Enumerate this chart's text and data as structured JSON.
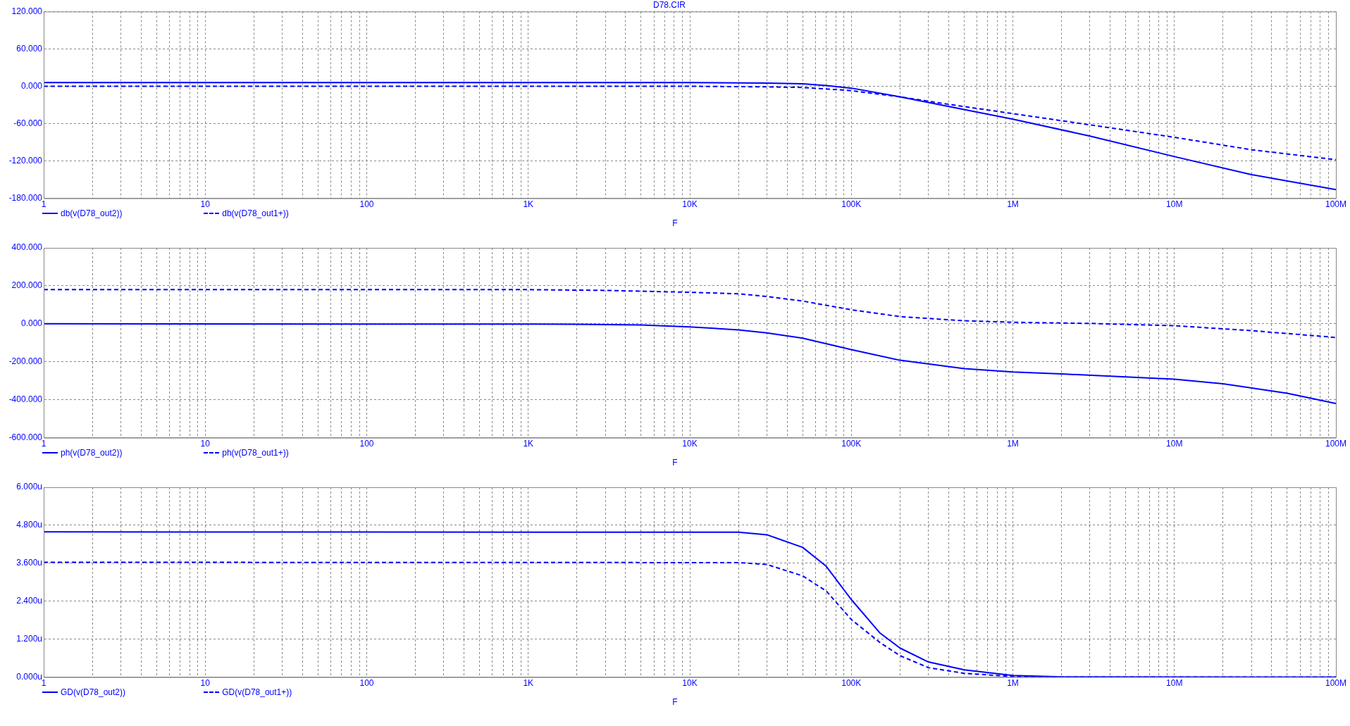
{
  "chart_data": [
    {
      "type": "line",
      "title": "D78.CIR",
      "xlabel": "F",
      "log": "x",
      "grid": true,
      "legend": "bottom left",
      "marker": "none",
      "xlim": [
        1,
        100000000
      ],
      "xticks": [
        {
          "value": 1,
          "label": "1"
        },
        {
          "value": 2,
          "label": null
        },
        {
          "value": 3,
          "label": null
        },
        {
          "value": 4,
          "label": null
        },
        {
          "value": 5,
          "label": null
        },
        {
          "value": 6,
          "label": null
        },
        {
          "value": 7,
          "label": null
        },
        {
          "value": 8,
          "label": null
        },
        {
          "value": 9,
          "label": null
        },
        {
          "value": 10,
          "label": "10"
        },
        {
          "value": 20,
          "label": null
        },
        {
          "value": 30,
          "label": null
        },
        {
          "value": 40,
          "label": null
        },
        {
          "value": 50,
          "label": null
        },
        {
          "value": 60,
          "label": null
        },
        {
          "value": 70,
          "label": null
        },
        {
          "value": 80,
          "label": null
        },
        {
          "value": 90,
          "label": null
        },
        {
          "value": 100,
          "label": "100"
        },
        {
          "value": 200,
          "label": null
        },
        {
          "value": 300,
          "label": null
        },
        {
          "value": 400,
          "label": null
        },
        {
          "value": 500,
          "label": null
        },
        {
          "value": 600,
          "label": null
        },
        {
          "value": 700,
          "label": null
        },
        {
          "value": 800,
          "label": null
        },
        {
          "value": 900,
          "label": null
        },
        {
          "value": 1000,
          "label": "1K"
        },
        {
          "value": 2000,
          "label": null
        },
        {
          "value": 3000,
          "label": null
        },
        {
          "value": 4000,
          "label": null
        },
        {
          "value": 5000,
          "label": null
        },
        {
          "value": 6000,
          "label": null
        },
        {
          "value": 7000,
          "label": null
        },
        {
          "value": 8000,
          "label": null
        },
        {
          "value": 9000,
          "label": null
        },
        {
          "value": 10000,
          "label": "10K"
        },
        {
          "value": 20000,
          "label": null
        },
        {
          "value": 30000,
          "label": null
        },
        {
          "value": 40000,
          "label": null
        },
        {
          "value": 50000,
          "label": null
        },
        {
          "value": 60000,
          "label": null
        },
        {
          "value": 70000,
          "label": null
        },
        {
          "value": 80000,
          "label": null
        },
        {
          "value": 90000,
          "label": null
        },
        {
          "value": 100000,
          "label": "100K"
        },
        {
          "value": 200000,
          "label": null
        },
        {
          "value": 300000,
          "label": null
        },
        {
          "value": 400000,
          "label": null
        },
        {
          "value": 500000,
          "label": null
        },
        {
          "value": 600000,
          "label": null
        },
        {
          "value": 700000,
          "label": null
        },
        {
          "value": 800000,
          "label": null
        },
        {
          "value": 900000,
          "label": null
        },
        {
          "value": 1000000,
          "label": "1M"
        },
        {
          "value": 2000000,
          "label": null
        },
        {
          "value": 3000000,
          "label": null
        },
        {
          "value": 4000000,
          "label": null
        },
        {
          "value": 5000000,
          "label": null
        },
        {
          "value": 6000000,
          "label": null
        },
        {
          "value": 7000000,
          "label": null
        },
        {
          "value": 8000000,
          "label": null
        },
        {
          "value": 9000000,
          "label": null
        },
        {
          "value": 10000000,
          "label": "10M"
        },
        {
          "value": 20000000,
          "label": null
        },
        {
          "value": 30000000,
          "label": null
        },
        {
          "value": 40000000,
          "label": null
        },
        {
          "value": 50000000,
          "label": null
        },
        {
          "value": 60000000,
          "label": null
        },
        {
          "value": 70000000,
          "label": null
        },
        {
          "value": 80000000,
          "label": null
        },
        {
          "value": 90000000,
          "label": null
        },
        {
          "value": 100000000,
          "label": "100M"
        }
      ],
      "ylim": [
        -180,
        120
      ],
      "yticks": [
        {
          "value": -180,
          "label": "-180.000"
        },
        {
          "value": -120,
          "label": "-120.000"
        },
        {
          "value": -60,
          "label": "-60.000"
        },
        {
          "value": 0,
          "label": "0.000"
        },
        {
          "value": 60,
          "label": "60.000"
        },
        {
          "value": 120,
          "label": "120.000"
        }
      ],
      "series": [
        {
          "name": "db(v(D78_out2))",
          "color": "#0000ff",
          "line_style": "solid",
          "x": [
            1,
            10000,
            30000,
            50000,
            70000,
            100000,
            200000,
            300000,
            1000000,
            3000000,
            10000000,
            30000000,
            100000000
          ],
          "values": [
            6,
            6,
            5,
            4,
            1,
            -3,
            -17,
            -26,
            -53,
            -80,
            -113,
            -142,
            -166
          ]
        },
        {
          "name": "db(v(D78_out1+))",
          "color": "#0000ff",
          "line_style": "dashed",
          "x": [
            1,
            10000,
            30000,
            50000,
            100000,
            200000,
            400000,
            1000000,
            3000000,
            10000000,
            30000000,
            100000000
          ],
          "values": [
            0,
            0,
            -1,
            -2,
            -7,
            -17,
            -29,
            -44,
            -62,
            -82,
            -102,
            -118
          ]
        }
      ]
    },
    {
      "type": "line",
      "xlabel": "F",
      "log": "x",
      "grid": true,
      "legend": "bottom left",
      "marker": "none",
      "xlim": [
        1,
        100000000
      ],
      "xticks": [
        {
          "value": 1,
          "label": "1"
        },
        {
          "value": 2,
          "label": null
        },
        {
          "value": 3,
          "label": null
        },
        {
          "value": 4,
          "label": null
        },
        {
          "value": 5,
          "label": null
        },
        {
          "value": 6,
          "label": null
        },
        {
          "value": 7,
          "label": null
        },
        {
          "value": 8,
          "label": null
        },
        {
          "value": 9,
          "label": null
        },
        {
          "value": 10,
          "label": "10"
        },
        {
          "value": 20,
          "label": null
        },
        {
          "value": 30,
          "label": null
        },
        {
          "value": 40,
          "label": null
        },
        {
          "value": 50,
          "label": null
        },
        {
          "value": 60,
          "label": null
        },
        {
          "value": 70,
          "label": null
        },
        {
          "value": 80,
          "label": null
        },
        {
          "value": 90,
          "label": null
        },
        {
          "value": 100,
          "label": "100"
        },
        {
          "value": 200,
          "label": null
        },
        {
          "value": 300,
          "label": null
        },
        {
          "value": 400,
          "label": null
        },
        {
          "value": 500,
          "label": null
        },
        {
          "value": 600,
          "label": null
        },
        {
          "value": 700,
          "label": null
        },
        {
          "value": 800,
          "label": null
        },
        {
          "value": 900,
          "label": null
        },
        {
          "value": 1000,
          "label": "1K"
        },
        {
          "value": 2000,
          "label": null
        },
        {
          "value": 3000,
          "label": null
        },
        {
          "value": 4000,
          "label": null
        },
        {
          "value": 5000,
          "label": null
        },
        {
          "value": 6000,
          "label": null
        },
        {
          "value": 7000,
          "label": null
        },
        {
          "value": 8000,
          "label": null
        },
        {
          "value": 9000,
          "label": null
        },
        {
          "value": 10000,
          "label": "10K"
        },
        {
          "value": 20000,
          "label": null
        },
        {
          "value": 30000,
          "label": null
        },
        {
          "value": 40000,
          "label": null
        },
        {
          "value": 50000,
          "label": null
        },
        {
          "value": 60000,
          "label": null
        },
        {
          "value": 70000,
          "label": null
        },
        {
          "value": 80000,
          "label": null
        },
        {
          "value": 90000,
          "label": null
        },
        {
          "value": 100000,
          "label": "100K"
        },
        {
          "value": 200000,
          "label": null
        },
        {
          "value": 300000,
          "label": null
        },
        {
          "value": 400000,
          "label": null
        },
        {
          "value": 500000,
          "label": null
        },
        {
          "value": 600000,
          "label": null
        },
        {
          "value": 700000,
          "label": null
        },
        {
          "value": 800000,
          "label": null
        },
        {
          "value": 900000,
          "label": null
        },
        {
          "value": 1000000,
          "label": "1M"
        },
        {
          "value": 2000000,
          "label": null
        },
        {
          "value": 3000000,
          "label": null
        },
        {
          "value": 4000000,
          "label": null
        },
        {
          "value": 5000000,
          "label": null
        },
        {
          "value": 6000000,
          "label": null
        },
        {
          "value": 7000000,
          "label": null
        },
        {
          "value": 8000000,
          "label": null
        },
        {
          "value": 9000000,
          "label": null
        },
        {
          "value": 10000000,
          "label": "10M"
        },
        {
          "value": 20000000,
          "label": null
        },
        {
          "value": 30000000,
          "label": null
        },
        {
          "value": 40000000,
          "label": null
        },
        {
          "value": 50000000,
          "label": null
        },
        {
          "value": 60000000,
          "label": null
        },
        {
          "value": 70000000,
          "label": null
        },
        {
          "value": 80000000,
          "label": null
        },
        {
          "value": 90000000,
          "label": null
        },
        {
          "value": 100000000,
          "label": "100M"
        }
      ],
      "ylim": [
        -600,
        400
      ],
      "yticks": [
        {
          "value": -600,
          "label": "-600.000"
        },
        {
          "value": -400,
          "label": "-400.000"
        },
        {
          "value": -200,
          "label": "-200.000"
        },
        {
          "value": 0,
          "label": "0.000"
        },
        {
          "value": 200,
          "label": "200.000"
        },
        {
          "value": 400,
          "label": "400.000"
        }
      ],
      "series": [
        {
          "name": "ph(v(D78_out2))",
          "color": "#0000ff",
          "line_style": "solid",
          "x": [
            1,
            2000,
            5000,
            10000,
            20000,
            30000,
            50000,
            100000,
            200000,
            500000,
            1000000,
            2000000,
            5000000,
            10000000,
            20000000,
            50000000,
            100000000
          ],
          "values": [
            0,
            -2,
            -6,
            -16,
            -32,
            -48,
            -76,
            -136,
            -192,
            -236,
            -254,
            -264,
            -280,
            -292,
            -316,
            -366,
            -420
          ]
        },
        {
          "name": "ph(v(D78_out1+))",
          "color": "#0000ff",
          "line_style": "dashed",
          "x": [
            1,
            1000,
            3000,
            10000,
            20000,
            30000,
            50000,
            100000,
            200000,
            500000,
            1000000,
            3000000,
            10000000,
            30000000,
            100000000
          ],
          "values": [
            180,
            180,
            176,
            166,
            158,
            144,
            120,
            74,
            38,
            16,
            8,
            2,
            -10,
            -36,
            -72
          ]
        }
      ]
    },
    {
      "type": "line",
      "xlabel": "F",
      "log": "x",
      "grid": true,
      "legend": "bottom left",
      "marker": "none",
      "xlim": [
        1,
        100000000
      ],
      "xticks": [
        {
          "value": 1,
          "label": "1"
        },
        {
          "value": 2,
          "label": null
        },
        {
          "value": 3,
          "label": null
        },
        {
          "value": 4,
          "label": null
        },
        {
          "value": 5,
          "label": null
        },
        {
          "value": 6,
          "label": null
        },
        {
          "value": 7,
          "label": null
        },
        {
          "value": 8,
          "label": null
        },
        {
          "value": 9,
          "label": null
        },
        {
          "value": 10,
          "label": "10"
        },
        {
          "value": 20,
          "label": null
        },
        {
          "value": 30,
          "label": null
        },
        {
          "value": 40,
          "label": null
        },
        {
          "value": 50,
          "label": null
        },
        {
          "value": 60,
          "label": null
        },
        {
          "value": 70,
          "label": null
        },
        {
          "value": 80,
          "label": null
        },
        {
          "value": 90,
          "label": null
        },
        {
          "value": 100,
          "label": "100"
        },
        {
          "value": 200,
          "label": null
        },
        {
          "value": 300,
          "label": null
        },
        {
          "value": 400,
          "label": null
        },
        {
          "value": 500,
          "label": null
        },
        {
          "value": 600,
          "label": null
        },
        {
          "value": 700,
          "label": null
        },
        {
          "value": 800,
          "label": null
        },
        {
          "value": 900,
          "label": null
        },
        {
          "value": 1000,
          "label": "1K"
        },
        {
          "value": 2000,
          "label": null
        },
        {
          "value": 3000,
          "label": null
        },
        {
          "value": 4000,
          "label": null
        },
        {
          "value": 5000,
          "label": null
        },
        {
          "value": 6000,
          "label": null
        },
        {
          "value": 7000,
          "label": null
        },
        {
          "value": 8000,
          "label": null
        },
        {
          "value": 9000,
          "label": null
        },
        {
          "value": 10000,
          "label": "10K"
        },
        {
          "value": 20000,
          "label": null
        },
        {
          "value": 30000,
          "label": null
        },
        {
          "value": 40000,
          "label": null
        },
        {
          "value": 50000,
          "label": null
        },
        {
          "value": 60000,
          "label": null
        },
        {
          "value": 70000,
          "label": null
        },
        {
          "value": 80000,
          "label": null
        },
        {
          "value": 90000,
          "label": null
        },
        {
          "value": 100000,
          "label": "100K"
        },
        {
          "value": 200000,
          "label": null
        },
        {
          "value": 300000,
          "label": null
        },
        {
          "value": 400000,
          "label": null
        },
        {
          "value": 500000,
          "label": null
        },
        {
          "value": 600000,
          "label": null
        },
        {
          "value": 700000,
          "label": null
        },
        {
          "value": 800000,
          "label": null
        },
        {
          "value": 900000,
          "label": null
        },
        {
          "value": 1000000,
          "label": "1M"
        },
        {
          "value": 2000000,
          "label": null
        },
        {
          "value": 3000000,
          "label": null
        },
        {
          "value": 4000000,
          "label": null
        },
        {
          "value": 5000000,
          "label": null
        },
        {
          "value": 6000000,
          "label": null
        },
        {
          "value": 7000000,
          "label": null
        },
        {
          "value": 8000000,
          "label": null
        },
        {
          "value": 9000000,
          "label": null
        },
        {
          "value": 10000000,
          "label": "10M"
        },
        {
          "value": 20000000,
          "label": null
        },
        {
          "value": 30000000,
          "label": null
        },
        {
          "value": 40000000,
          "label": null
        },
        {
          "value": 50000000,
          "label": null
        },
        {
          "value": 60000000,
          "label": null
        },
        {
          "value": 70000000,
          "label": null
        },
        {
          "value": 80000000,
          "label": null
        },
        {
          "value": 90000000,
          "label": null
        },
        {
          "value": 100000000,
          "label": "100M"
        }
      ],
      "ylim": [
        0,
        6
      ],
      "yticks": [
        {
          "value": 0,
          "label": "0.000u"
        },
        {
          "value": 1.2,
          "label": "1.200u"
        },
        {
          "value": 2.4,
          "label": "2.400u"
        },
        {
          "value": 3.6,
          "label": "3.600u"
        },
        {
          "value": 4.8,
          "label": "4.800u"
        },
        {
          "value": 6,
          "label": "6.000u"
        }
      ],
      "series": [
        {
          "name": "GD(v(D78_out2))",
          "color": "#0000ff",
          "line_style": "solid",
          "x": [
            1,
            20000,
            30000,
            50000,
            70000,
            100000,
            150000,
            200000,
            300000,
            500000,
            1000000,
            2000000,
            100000000
          ],
          "values": [
            4.59,
            4.58,
            4.5,
            4.1,
            3.5,
            2.45,
            1.4,
            0.92,
            0.48,
            0.23,
            0.05,
            0.01,
            0
          ]
        },
        {
          "name": "GD(v(D78_out1+))",
          "color": "#0000ff",
          "line_style": "dashed",
          "x": [
            1,
            20000,
            30000,
            50000,
            70000,
            100000,
            150000,
            200000,
            300000,
            500000,
            1000000,
            2000000,
            100000000
          ],
          "values": [
            3.63,
            3.62,
            3.56,
            3.2,
            2.72,
            1.82,
            1.1,
            0.68,
            0.3,
            0.12,
            0.02,
            0,
            0
          ]
        }
      ]
    }
  ]
}
